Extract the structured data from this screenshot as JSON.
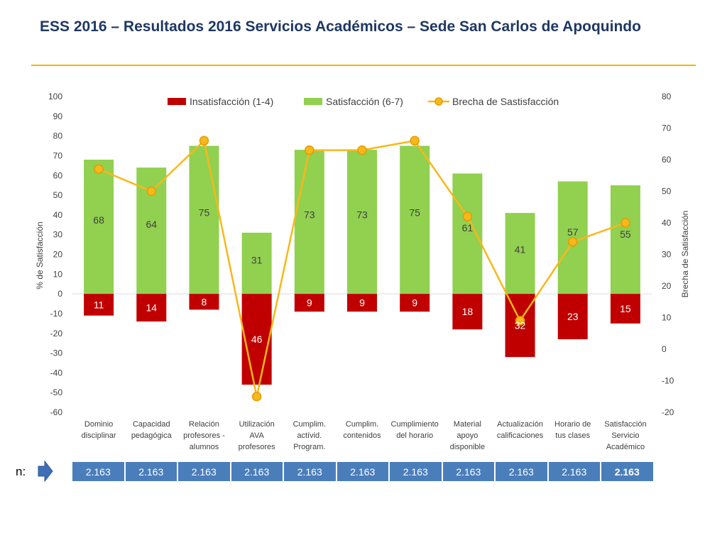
{
  "title": "ESS 2016 – Resultados 2016 Servicios Académicos – Sede San Carlos de Apoquindo",
  "colors": {
    "title": "#1f3864",
    "rule": "#f2b600",
    "insatisfaccion": "#c00000",
    "satisfaccion": "#92d050",
    "brecha": "#f7b81b",
    "n_cell": "#4a7ebb"
  },
  "n_row": {
    "label": "n:",
    "icon": "arrow-right-icon",
    "values": [
      "2.163",
      "2.163",
      "2.163",
      "2.163",
      "2.163",
      "2.163",
      "2.163",
      "2.163",
      "2.163",
      "2.163",
      "2.163"
    ]
  },
  "chart_data": {
    "type": "bar",
    "categories": [
      [
        "Dominio",
        "disciplinar"
      ],
      [
        "Capacidad",
        "pedagógica"
      ],
      [
        "Relación",
        "profesores -",
        "alumnos"
      ],
      [
        "Utilización",
        "AVA",
        "profesores"
      ],
      [
        "Cumplim.",
        "actívid.",
        "Program."
      ],
      [
        "Cumplim.",
        "contenidos"
      ],
      [
        "Cumplimiento",
        "del horario"
      ],
      [
        "Material",
        "apoyo",
        "disponible"
      ],
      [
        "Actualización",
        "calificaciones"
      ],
      [
        "Horario de",
        "tus clases"
      ],
      [
        "Satisfacción",
        "Servicio",
        "Académico"
      ]
    ],
    "series": [
      {
        "name": "Insatisfacción (1-4)",
        "type": "bar",
        "axis": "left",
        "values": [
          -11,
          -14,
          -8,
          -46,
          -9,
          -9,
          -9,
          -18,
          -32,
          -23,
          -15
        ],
        "labels": [
          "11",
          "14",
          "8",
          "46",
          "9",
          "9",
          "9",
          "18",
          "32",
          "23",
          "15"
        ]
      },
      {
        "name": "Satisfacción (6-7)",
        "type": "bar",
        "axis": "left",
        "values": [
          68,
          64,
          75,
          31,
          73,
          73,
          75,
          61,
          41,
          57,
          55
        ],
        "labels": [
          "68",
          "64",
          "75",
          "31",
          "73",
          "73",
          "75",
          "61",
          "41",
          "57",
          "55"
        ]
      },
      {
        "name": "Brecha de Sastisfacción",
        "type": "line",
        "axis": "right",
        "values": [
          57,
          50,
          66,
          -15,
          63,
          63,
          66,
          42,
          9,
          34,
          40
        ]
      }
    ],
    "ylabel": "% de Satisfacción",
    "y2label": "Brecha de Satisfacción",
    "ylim": [
      -60,
      100
    ],
    "y2lim": [
      -20,
      80
    ],
    "yticks": [
      100,
      90,
      80,
      70,
      60,
      50,
      40,
      30,
      20,
      10,
      0,
      -10,
      -20,
      -30,
      -40,
      -50,
      -60
    ],
    "y2ticks": [
      80,
      70,
      60,
      50,
      40,
      30,
      20,
      10,
      0,
      -10,
      -20
    ],
    "legend": "top",
    "grid": false
  }
}
